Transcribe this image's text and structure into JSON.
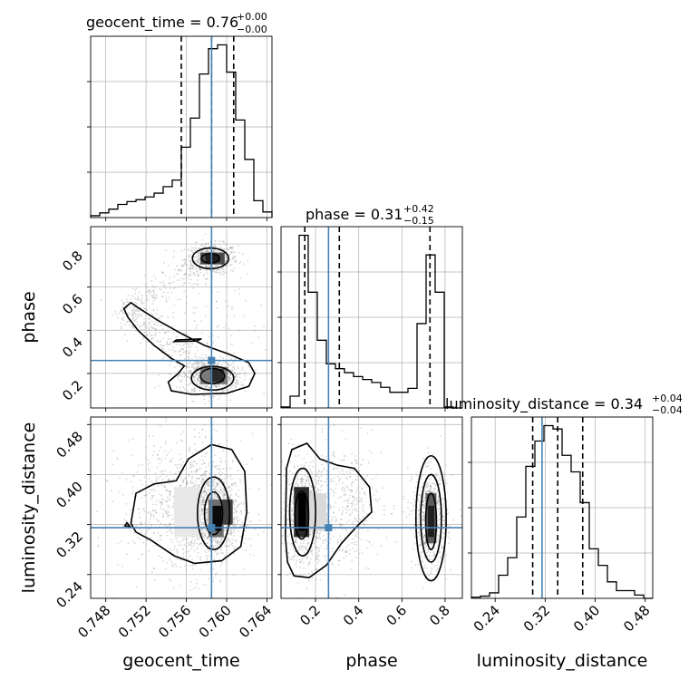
{
  "chart_data": {
    "type": "corner",
    "parameters": [
      "geocent_time",
      "phase",
      "luminosity_distance"
    ],
    "axis_labels": {
      "geocent_time": "geocent_time",
      "phase": "phase",
      "luminosity_distance": "luminosity_distance"
    },
    "titles": [
      {
        "param": "geocent_time",
        "base": "geocent_time = 0.76",
        "plus": "+0.00",
        "minus": "−0.00"
      },
      {
        "param": "phase",
        "base": "phase = 0.31",
        "plus": "+0.42",
        "minus": "−0.15"
      },
      {
        "param": "luminosity_distance",
        "base": "luminosity_distance = 0.34",
        "plus": "+0.04",
        "minus": "−0.04"
      }
    ],
    "ranges": {
      "geocent_time": [
        0.7465,
        0.7645
      ],
      "phase": [
        0.04,
        0.88
      ],
      "luminosity_distance": [
        0.202,
        0.492
      ]
    },
    "ticks": {
      "geocent_time": {
        "values": [
          0.748,
          0.752,
          0.756,
          0.76,
          0.764
        ],
        "labels": [
          "0.748",
          "0.752",
          "0.756",
          "0.760",
          "0.764"
        ]
      },
      "phase": {
        "values": [
          0.2,
          0.4,
          0.6,
          0.8
        ],
        "labels": [
          "0.2",
          "0.4",
          "0.6",
          "0.8"
        ]
      },
      "luminosity_distance": {
        "values": [
          0.24,
          0.32,
          0.4,
          0.48
        ],
        "labels": [
          "0.24",
          "0.32",
          "0.40",
          "0.48"
        ]
      }
    },
    "truths": {
      "geocent_time": 0.7585,
      "phase": 0.26,
      "luminosity_distance": 0.315
    },
    "quantiles": {
      "geocent_time": [
        0.7555,
        0.7585,
        0.7607
      ],
      "phase": [
        0.15,
        0.31,
        0.73
      ],
      "luminosity_distance": [
        0.3,
        0.34,
        0.38
      ]
    },
    "histograms": {
      "geocent_time": {
        "edges": [
          0.7465,
          0.7474,
          0.7483,
          0.7492,
          0.7501,
          0.751,
          0.7519,
          0.7528,
          0.7537,
          0.7546,
          0.7555,
          0.7564,
          0.7573,
          0.7582,
          0.7591,
          0.76,
          0.7609,
          0.7618,
          0.7627,
          0.7636,
          0.7645
        ],
        "counts": [
          2,
          5,
          9,
          14,
          17,
          19,
          22,
          26,
          33,
          40,
          75,
          106,
          153,
          180,
          184,
          155,
          104,
          62,
          18,
          6
        ]
      },
      "phase": {
        "edges": [
          0.04,
          0.082,
          0.124,
          0.166,
          0.208,
          0.25,
          0.292,
          0.334,
          0.376,
          0.418,
          0.46,
          0.502,
          0.544,
          0.586,
          0.628,
          0.67,
          0.712,
          0.754,
          0.796,
          0.838,
          0.88
        ],
        "counts": [
          1,
          12,
          176,
          118,
          69,
          45,
          40,
          36,
          32,
          29,
          26,
          21,
          16,
          16,
          20,
          86,
          156,
          118,
          1,
          0
        ]
      },
      "luminosity_distance": {
        "edges": [
          0.202,
          0.2165,
          0.231,
          0.2455,
          0.26,
          0.2745,
          0.289,
          0.3035,
          0.318,
          0.3325,
          0.347,
          0.3615,
          0.376,
          0.3905,
          0.405,
          0.4195,
          0.434,
          0.4485,
          0.463,
          0.4775,
          0.492
        ],
        "counts": [
          1,
          2,
          5,
          21,
          37,
          74,
          120,
          143,
          157,
          154,
          130,
          115,
          87,
          45,
          30,
          15,
          7,
          7,
          3,
          0
        ]
      }
    },
    "grid": true
  }
}
